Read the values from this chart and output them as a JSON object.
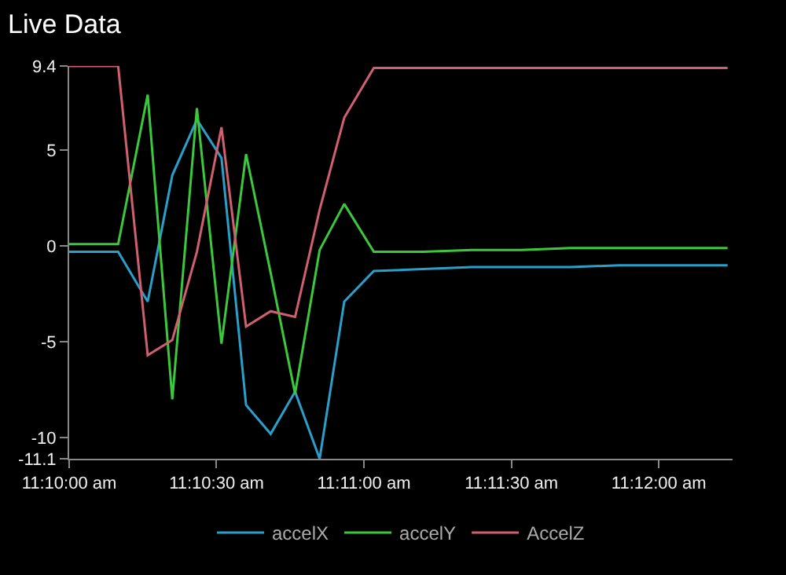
{
  "chart_data": {
    "type": "line",
    "title": "Live Data",
    "x": [
      11.16667,
      11.16944,
      11.17111,
      11.1725,
      11.17389,
      11.17528,
      11.17667,
      11.17806,
      11.17944,
      11.18083,
      11.18222,
      11.18389,
      11.18667,
      11.18944,
      11.19222,
      11.195,
      11.19778,
      11.20056,
      11.20389
    ],
    "series": [
      {
        "name": "accelX",
        "color": "#2a9fc9",
        "values": [
          -0.3,
          -0.3,
          -2.9,
          3.7,
          6.6,
          4.6,
          -8.3,
          -9.8,
          -7.6,
          -11.1,
          -2.9,
          -1.3,
          -1.2,
          -1.1,
          -1.1,
          -1.1,
          -1.0,
          -1.0,
          -1.0
        ]
      },
      {
        "name": "accelY",
        "color": "#3cc83c",
        "values": [
          0.1,
          0.1,
          7.9,
          -8.0,
          7.2,
          -5.1,
          4.8,
          -1.4,
          -7.7,
          -0.2,
          2.2,
          -0.3,
          -0.3,
          -0.2,
          -0.2,
          -0.1,
          -0.1,
          -0.1,
          -0.1
        ]
      },
      {
        "name": "AccelZ",
        "color": "#d06070",
        "values": [
          9.4,
          9.4,
          -5.7,
          -4.9,
          -0.3,
          6.2,
          -4.2,
          -3.4,
          -3.7,
          1.9,
          6.7,
          9.3,
          9.3,
          9.3,
          9.3,
          9.3,
          9.3,
          9.3,
          9.3
        ]
      }
    ],
    "xlim": [
      11.16667,
      11.20417
    ],
    "xticks": [
      {
        "value": 11.16667,
        "label": "11:10:00 am"
      },
      {
        "value": 11.175,
        "label": "11:10:30 am"
      },
      {
        "value": 11.18333,
        "label": "11:11:00 am"
      },
      {
        "value": 11.19167,
        "label": "11:11:30 am"
      },
      {
        "value": 11.2,
        "label": "11:12:00 am"
      }
    ],
    "ylim": [
      -11.1,
      9.4
    ],
    "yticks": [
      9.4,
      5,
      0,
      -5,
      -10,
      -11.1
    ],
    "grid": false,
    "legend": "bottom",
    "marker": "none",
    "line_style": "solid"
  }
}
